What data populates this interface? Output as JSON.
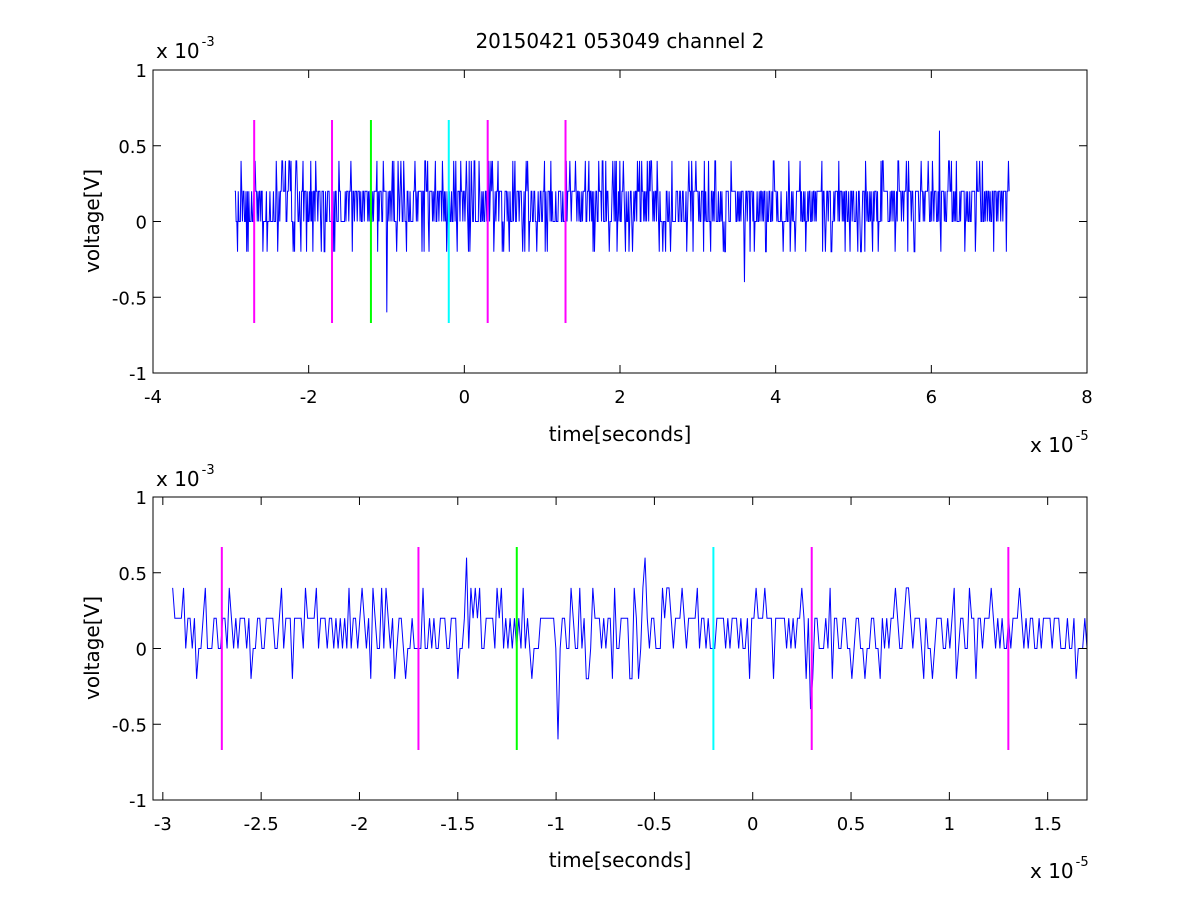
{
  "figure": {
    "title": "20150421 053049 channel 2",
    "colors": {
      "trace": "#0000ff",
      "magenta": "#ff00ff",
      "green": "#00ff00",
      "cyan": "#00ffff",
      "axes": "#000000",
      "background": "#ffffff"
    }
  },
  "chart_data": [
    {
      "type": "line",
      "title": "20150421 053049 channel 2",
      "xlabel": "time[seconds]",
      "ylabel": "voltage[V]",
      "x_multiplier": {
        "base": "x 10",
        "exponent": "-5"
      },
      "y_multiplier": {
        "base": "x 10",
        "exponent": "-3"
      },
      "xlim": [
        -4,
        8
      ],
      "ylim": [
        -1,
        1
      ],
      "xticks": [
        -4,
        -2,
        0,
        2,
        4,
        6,
        8
      ],
      "xtick_labels": [
        "-4",
        "-2",
        "0",
        "2",
        "4",
        "6",
        "8"
      ],
      "yticks": [
        -1,
        -0.5,
        0,
        0.5,
        1
      ],
      "ytick_labels": [
        "-1",
        "-0.5",
        "0",
        "0.5",
        "1"
      ],
      "grid": false,
      "trace_x_range": [
        -2.95,
        7.0
      ],
      "trace_levels": [
        -0.4,
        -0.2,
        0,
        0.2,
        0.4,
        0.6
      ],
      "markers": [
        {
          "x": -2.7,
          "color": "magenta",
          "ymin": -0.67,
          "ymax": 0.67
        },
        {
          "x": -1.7,
          "color": "magenta",
          "ymin": -0.67,
          "ymax": 0.67
        },
        {
          "x": -1.2,
          "color": "green",
          "ymin": -0.67,
          "ymax": 0.67
        },
        {
          "x": -0.2,
          "color": "cyan",
          "ymin": -0.67,
          "ymax": 0.67
        },
        {
          "x": 0.3,
          "color": "magenta",
          "ymin": -0.67,
          "ymax": 0.67
        },
        {
          "x": 1.3,
          "color": "magenta",
          "ymin": -0.67,
          "ymax": 0.67
        }
      ],
      "spikes": [
        {
          "x": -1.68,
          "y": -0.2
        },
        {
          "x": -1.0,
          "y": -0.6
        },
        {
          "x": -0.2,
          "y": -0.2
        },
        {
          "x": 3.6,
          "y": -0.4
        },
        {
          "x": 6.1,
          "y": 0.6
        }
      ]
    },
    {
      "type": "line",
      "xlabel": "time[seconds]",
      "ylabel": "voltage[V]",
      "x_multiplier": {
        "base": "x 10",
        "exponent": "-5"
      },
      "y_multiplier": {
        "base": "x 10",
        "exponent": "-3"
      },
      "xlim": [
        -3.05,
        1.7
      ],
      "ylim": [
        -1,
        1
      ],
      "xticks": [
        -3,
        -2.5,
        -2,
        -1.5,
        -1,
        -0.5,
        0,
        0.5,
        1,
        1.5
      ],
      "xtick_labels": [
        "-3",
        "-2.5",
        "-2",
        "-1.5",
        "-1",
        "-0.5",
        "0",
        "0.5",
        "1",
        "1.5"
      ],
      "yticks": [
        -1,
        -0.5,
        0,
        0.5,
        1
      ],
      "ytick_labels": [
        "-1",
        "-0.5",
        "0",
        "0.5",
        "1"
      ],
      "grid": false,
      "trace_x_range": [
        -2.95,
        1.7
      ],
      "trace_levels": [
        -0.6,
        -0.4,
        -0.2,
        0,
        0.2,
        0.4,
        0.6
      ],
      "markers": [
        {
          "x": -2.7,
          "color": "magenta",
          "ymin": -0.67,
          "ymax": 0.67
        },
        {
          "x": -1.7,
          "color": "magenta",
          "ymin": -0.67,
          "ymax": 0.67
        },
        {
          "x": -1.2,
          "color": "green",
          "ymin": -0.67,
          "ymax": 0.67
        },
        {
          "x": -0.2,
          "color": "cyan",
          "ymin": -0.67,
          "ymax": 0.67
        },
        {
          "x": 0.3,
          "color": "magenta",
          "ymin": -0.67,
          "ymax": 0.67
        },
        {
          "x": 1.3,
          "color": "magenta",
          "ymin": -0.67,
          "ymax": 0.67
        }
      ],
      "spikes": [
        {
          "x": -1.46,
          "y": 0.6
        },
        {
          "x": -0.99,
          "y": -0.6
        },
        {
          "x": -0.55,
          "y": 0.6
        },
        {
          "x": 0.29,
          "y": -0.4
        }
      ]
    }
  ]
}
